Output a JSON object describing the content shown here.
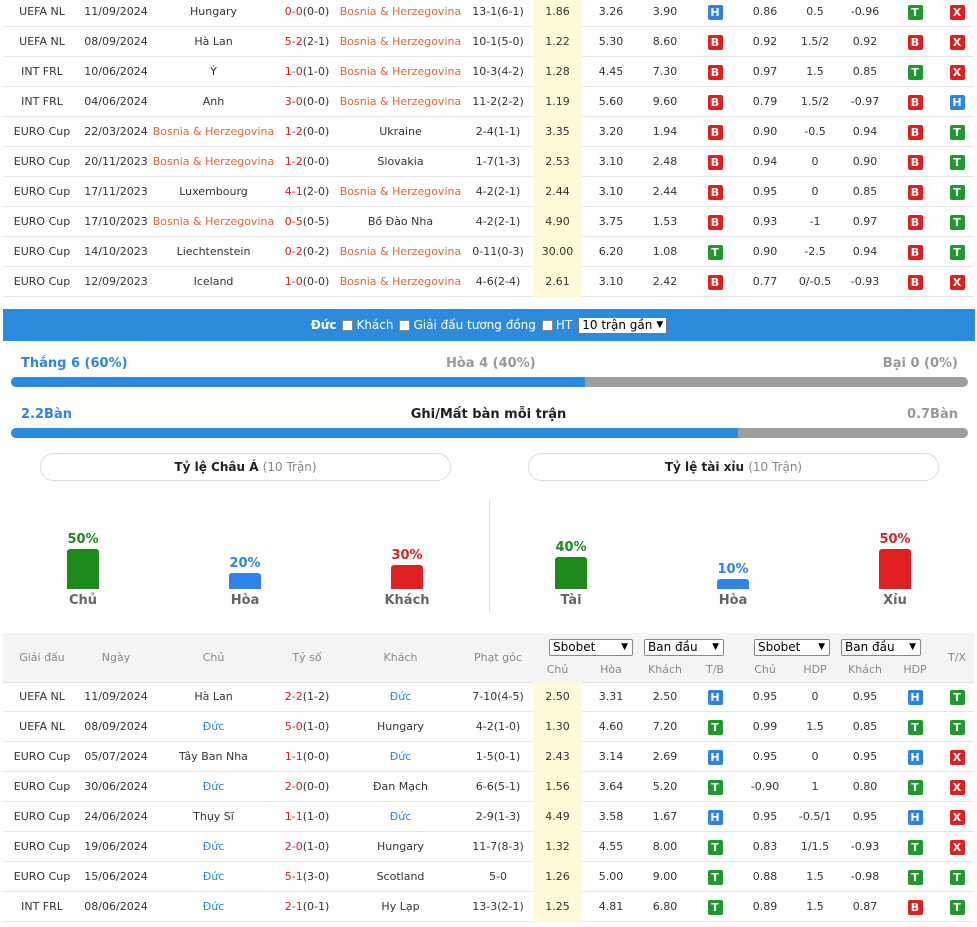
{
  "top_rows": [
    {
      "league": "UEFA NL",
      "date": "11/09/2024",
      "home": "Hungary",
      "home_c": "",
      "score": "0-0",
      "ht": "(0-0)",
      "sc_c": "red",
      "away": "Bosnia & Herzegovina",
      "away_c": "or",
      "corners": "13-1(6-1)",
      "o1": "1.86",
      "o2": "3.26",
      "o3": "3.90",
      "tb": "H",
      "h1": "0.86",
      "h2": "0.5",
      "h3": "-0.96",
      "hd": "T",
      "tx": "X"
    },
    {
      "league": "UEFA NL",
      "date": "08/09/2024",
      "home": "Hà Lan",
      "home_c": "",
      "score": "5-2",
      "ht": "(2-1)",
      "sc_c": "red",
      "away": "Bosnia & Herzegovina",
      "away_c": "or",
      "corners": "10-1(5-0)",
      "o1": "1.22",
      "o2": "5.30",
      "o3": "8.60",
      "tb": "B",
      "h1": "0.92",
      "h2": "1.5/2",
      "h3": "0.92",
      "hd": "B",
      "tx": "X"
    },
    {
      "league": "INT FRL",
      "date": "10/06/2024",
      "home": "Ý",
      "home_c": "",
      "score": "1-0",
      "ht": "(1-0)",
      "sc_c": "red",
      "away": "Bosnia & Herzegovina",
      "away_c": "or",
      "corners": "10-3(4-2)",
      "o1": "1.28",
      "o2": "4.45",
      "o3": "7.30",
      "tb": "B",
      "h1": "0.97",
      "h2": "1.5",
      "h3": "0.85",
      "hd": "T",
      "tx": "X"
    },
    {
      "league": "INT FRL",
      "date": "04/06/2024",
      "home": "Anh",
      "home_c": "",
      "score": "3-0",
      "ht": "(0-0)",
      "sc_c": "red",
      "away": "Bosnia & Herzegovina",
      "away_c": "or",
      "corners": "11-2(2-2)",
      "o1": "1.19",
      "o2": "5.60",
      "o3": "9.60",
      "tb": "B",
      "h1": "0.79",
      "h2": "1.5/2",
      "h3": "-0.97",
      "hd": "B",
      "tx": "H"
    },
    {
      "league": "EURO Cup",
      "date": "22/03/2024",
      "home": "Bosnia & Herzegovina",
      "home_c": "or",
      "score": "1-2",
      "ht": "(0-0)",
      "sc_c": "red",
      "away": "Ukraine",
      "away_c": "",
      "corners": "2-4(1-1)",
      "o1": "3.35",
      "o2": "3.20",
      "o3": "1.94",
      "tb": "B",
      "h1": "0.90",
      "h2": "-0.5",
      "h3": "0.94",
      "hd": "B",
      "tx": "T"
    },
    {
      "league": "EURO Cup",
      "date": "20/11/2023",
      "home": "Bosnia & Herzegovina",
      "home_c": "or",
      "score": "1-2",
      "ht": "(0-0)",
      "sc_c": "red",
      "away": "Slovakia",
      "away_c": "",
      "corners": "1-7(1-3)",
      "o1": "2.53",
      "o2": "3.10",
      "o3": "2.48",
      "tb": "B",
      "h1": "0.94",
      "h2": "0",
      "h3": "0.90",
      "hd": "B",
      "tx": "T"
    },
    {
      "league": "EURO Cup",
      "date": "17/11/2023",
      "home": "Luxembourg",
      "home_c": "",
      "score": "4-1",
      "ht": "(2-0)",
      "sc_c": "red",
      "away": "Bosnia & Herzegovina",
      "away_c": "or",
      "corners": "4-2(2-1)",
      "o1": "2.44",
      "o2": "3.10",
      "o3": "2.44",
      "tb": "B",
      "h1": "0.95",
      "h2": "0",
      "h3": "0.85",
      "hd": "B",
      "tx": "T"
    },
    {
      "league": "EURO Cup",
      "date": "17/10/2023",
      "home": "Bosnia & Herzegovina",
      "home_c": "or",
      "score": "0-5",
      "ht": "(0-5)",
      "sc_c": "red",
      "away": "Bồ Đào Nha",
      "away_c": "",
      "corners": "4-2(2-1)",
      "o1": "4.90",
      "o2": "3.75",
      "o3": "1.53",
      "tb": "B",
      "h1": "0.93",
      "h2": "-1",
      "h3": "0.97",
      "hd": "B",
      "tx": "T"
    },
    {
      "league": "EURO Cup",
      "date": "14/10/2023",
      "home": "Liechtenstein",
      "home_c": "",
      "score": "0-2",
      "ht": "(0-2)",
      "sc_c": "red",
      "away": "Bosnia & Herzegovina",
      "away_c": "or",
      "corners": "0-11(0-3)",
      "o1": "30.00",
      "o2": "6.20",
      "o3": "1.08",
      "tb": "T",
      "h1": "0.90",
      "h2": "-2.5",
      "h3": "0.94",
      "hd": "B",
      "tx": "T"
    },
    {
      "league": "EURO Cup",
      "date": "12/09/2023",
      "home": "Iceland",
      "home_c": "",
      "score": "1-0",
      "ht": "(0-0)",
      "sc_c": "red",
      "away": "Bosnia & Herzegovina",
      "away_c": "or",
      "corners": "4-6(2-4)",
      "o1": "2.61",
      "o2": "3.10",
      "o3": "2.42",
      "tb": "B",
      "h1": "0.77",
      "h2": "0/-0.5",
      "h3": "-0.93",
      "hd": "B",
      "tx": "X"
    }
  ],
  "filter": {
    "team": "Đức",
    "away": "Khách",
    "same_league": "Giải đấu tương đồng",
    "ht": "HT",
    "select": "10 trận gần"
  },
  "summary": {
    "win": "Thắng 6 (60%)",
    "draw": "Hòa 4 (40%)",
    "loss": "Bại 0 (0%)",
    "win_fraction": 0.6,
    "goals_for": "2.2Bàn",
    "goals_title": "Ghi/Mất bàn mỗi trận",
    "goals_against": "0.7Bàn",
    "goals_fraction": 0.76
  },
  "asian": {
    "title": "Tỷ lệ Châu Á",
    "count": "(10 Trận)",
    "items": [
      {
        "pct": "50%",
        "label": "Chủ",
        "value": 0.5,
        "color": "#1e8a1e"
      },
      {
        "pct": "20%",
        "label": "Hòa",
        "value": 0.2,
        "color": "#2d84e6"
      },
      {
        "pct": "30%",
        "label": "Khách",
        "value": 0.3,
        "color": "#e02020"
      }
    ]
  },
  "ou": {
    "title": "Tỷ lệ tài xỉu",
    "count": "(10 Trận)",
    "items": [
      {
        "pct": "40%",
        "label": "Tài",
        "value": 0.4,
        "color": "#1e8a1e"
      },
      {
        "pct": "10%",
        "label": "Hòa",
        "value": 0.1,
        "color": "#2d84e6"
      },
      {
        "pct": "50%",
        "label": "Xỉu",
        "value": 0.5,
        "color": "#e02020"
      }
    ]
  },
  "header": {
    "league": "Giải đấu",
    "date": "Ngày",
    "home": "Chủ",
    "score": "Tỷ số",
    "away": "Khách",
    "corners": "Phạt góc",
    "dd1": "Sbobet",
    "dd2": "Ban đầu",
    "dd3": "Sbobet",
    "dd4": "Ban đầu",
    "o1": "Chủ",
    "o2": "Hòa",
    "o3": "Khách",
    "tb": "T/B",
    "h1": "Chủ",
    "h2": "HDP",
    "h3": "Khách",
    "hd": "HDP",
    "tx": "T/X"
  },
  "bottom_rows": [
    {
      "league": "UEFA NL",
      "date": "11/09/2024",
      "home": "Hà Lan",
      "home_c": "",
      "score": "2-2",
      "ht": "(1-2)",
      "sc_c": "red",
      "away": "Đức",
      "away_c": "bl",
      "corners": "7-10(4-5)",
      "o1": "2.50",
      "o2": "3.31",
      "o3": "2.50",
      "tb": "H",
      "h1": "0.95",
      "h2": "0",
      "h3": "0.95",
      "hd": "H",
      "tx": "T"
    },
    {
      "league": "UEFA NL",
      "date": "08/09/2024",
      "home": "Đức",
      "home_c": "bl",
      "score": "5-0",
      "ht": "(1-0)",
      "sc_c": "red",
      "away": "Hungary",
      "away_c": "",
      "corners": "4-2(1-0)",
      "o1": "1.30",
      "o2": "4.60",
      "o3": "7.20",
      "tb": "T",
      "h1": "0.99",
      "h2": "1.5",
      "h3": "0.85",
      "hd": "T",
      "tx": "T"
    },
    {
      "league": "EURO Cup",
      "date": "05/07/2024",
      "home": "Tây Ban Nha",
      "home_c": "",
      "score": "1-1",
      "ht": "(0-0)",
      "sc_c": "red",
      "away": "Đức",
      "away_c": "bl",
      "corners": "1-5(0-1)",
      "o1": "2.43",
      "o2": "3.14",
      "o3": "2.69",
      "tb": "H",
      "h1": "0.95",
      "h2": "0",
      "h3": "0.95",
      "hd": "H",
      "tx": "X"
    },
    {
      "league": "EURO Cup",
      "date": "30/06/2024",
      "home": "Đức",
      "home_c": "bl",
      "score": "2-0",
      "ht": "(0-0)",
      "sc_c": "red",
      "away": "Đan Mạch",
      "away_c": "",
      "corners": "6-6(5-1)",
      "o1": "1.56",
      "o2": "3.64",
      "o3": "5.20",
      "tb": "T",
      "h1": "-0.90",
      "h2": "1",
      "h3": "0.80",
      "hd": "T",
      "tx": "X"
    },
    {
      "league": "EURO Cup",
      "date": "24/06/2024",
      "home": "Thụy Sĩ",
      "home_c": "",
      "score": "1-1",
      "ht": "(1-0)",
      "sc_c": "red",
      "away": "Đức",
      "away_c": "bl",
      "corners": "2-9(1-3)",
      "o1": "4.49",
      "o2": "3.58",
      "o3": "1.67",
      "tb": "H",
      "h1": "0.95",
      "h2": "-0.5/1",
      "h3": "0.95",
      "hd": "H",
      "tx": "X"
    },
    {
      "league": "EURO Cup",
      "date": "19/06/2024",
      "home": "Đức",
      "home_c": "bl",
      "score": "2-0",
      "ht": "(1-0)",
      "sc_c": "red",
      "away": "Hungary",
      "away_c": "",
      "corners": "11-7(8-3)",
      "o1": "1.32",
      "o2": "4.55",
      "o3": "8.00",
      "tb": "T",
      "h1": "0.83",
      "h2": "1/1.5",
      "h3": "-0.93",
      "hd": "T",
      "tx": "X"
    },
    {
      "league": "EURO Cup",
      "date": "15/06/2024",
      "home": "Đức",
      "home_c": "bl",
      "score": "5-1",
      "ht": "(3-0)",
      "sc_c": "red",
      "away": "Scotland",
      "away_c": "",
      "corners": "5-0",
      "o1": "1.26",
      "o2": "5.00",
      "o3": "9.00",
      "tb": "T",
      "h1": "0.88",
      "h2": "1.5",
      "h3": "-0.98",
      "hd": "T",
      "tx": "T"
    },
    {
      "league": "INT FRL",
      "date": "08/06/2024",
      "home": "Đức",
      "home_c": "bl",
      "score": "2-1",
      "ht": "(0-1)",
      "sc_c": "red",
      "away": "Hy Lạp",
      "away_c": "",
      "corners": "13-3(2-1)",
      "o1": "1.25",
      "o2": "4.81",
      "o3": "6.80",
      "tb": "T",
      "h1": "0.89",
      "h2": "1.5",
      "h3": "0.87",
      "hd": "B",
      "tx": "T"
    }
  ]
}
